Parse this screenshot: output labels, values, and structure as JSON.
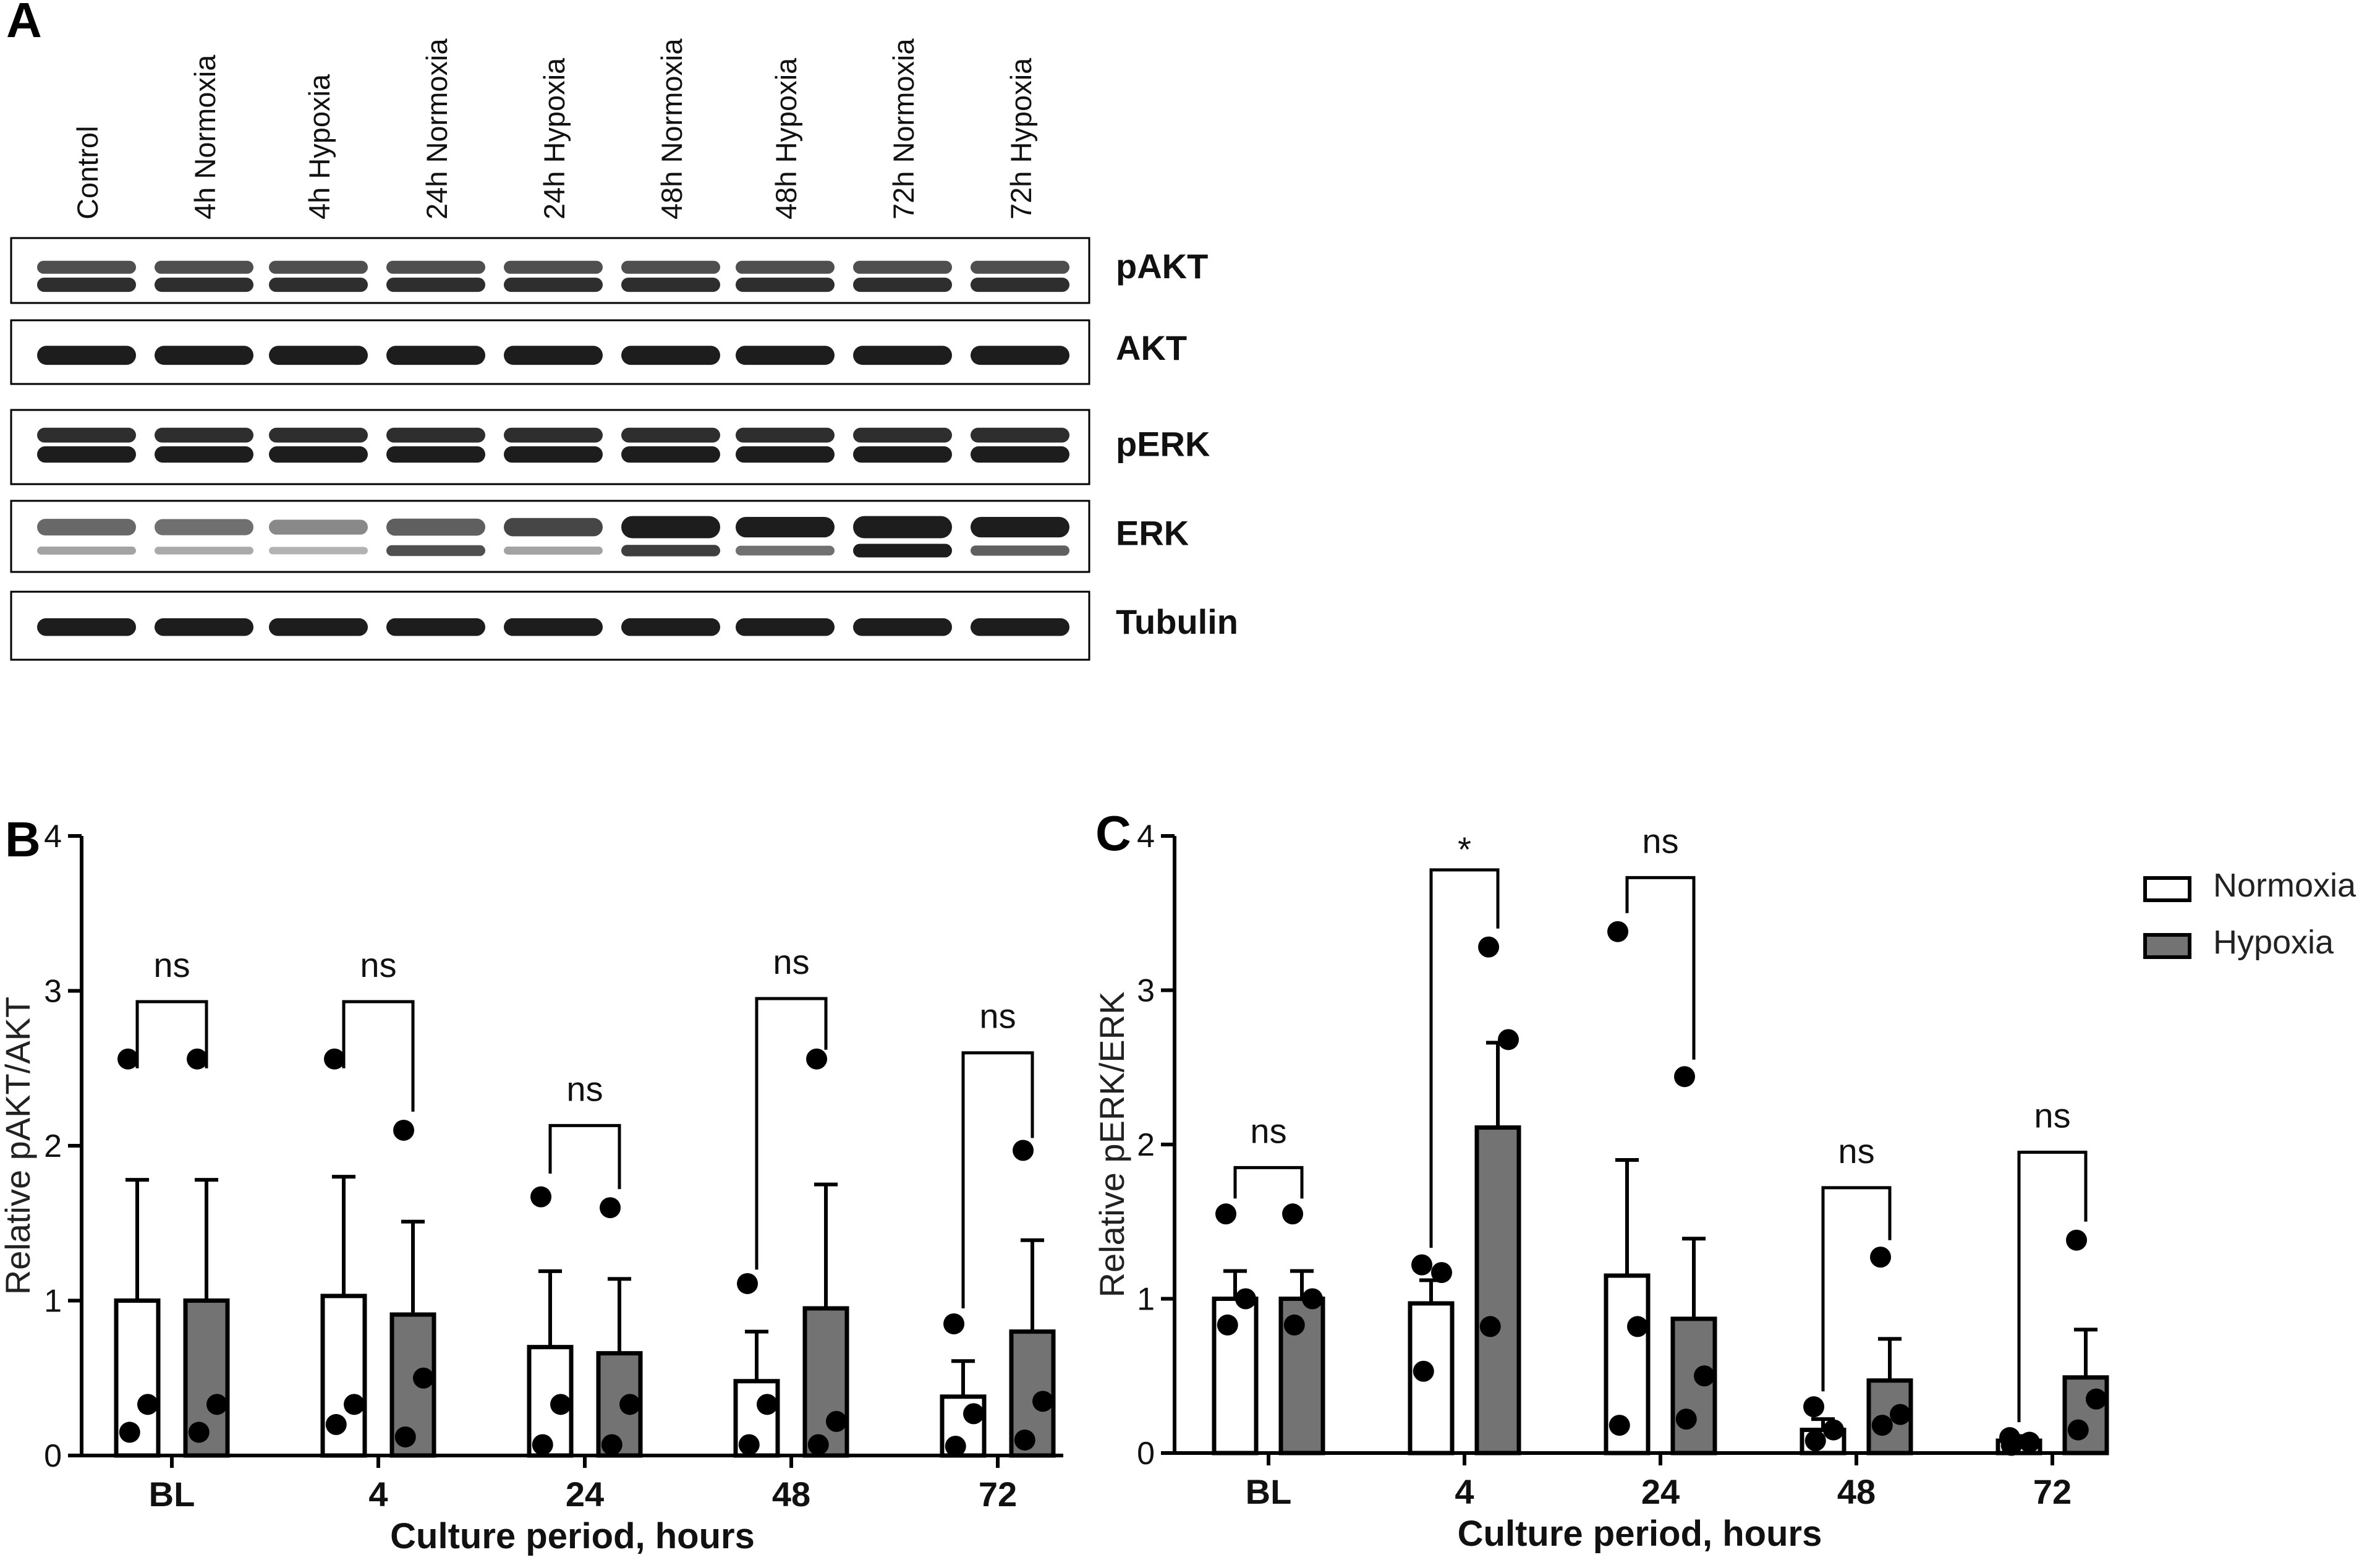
{
  "panel_labels": {
    "a": "A",
    "b": "B",
    "c": "C"
  },
  "colors": {
    "normoxia": "#ffffff",
    "hypoxia": "#737373",
    "axis": "#000000",
    "dot": "#000000"
  },
  "blot": {
    "lanes": [
      "Control",
      "4h Normoxia",
      "4h Hypoxia",
      "24h Normoxia",
      "24h Hypoxia",
      "48h Normoxia",
      "48h Hypoxia",
      "72h Normoxia",
      "72h Hypoxia"
    ],
    "proteins": [
      "pAKT",
      "AKT",
      "pERK",
      "ERK",
      "Tubulin"
    ]
  },
  "chart_data": [
    {
      "type": "bar",
      "panel": "B",
      "categories": [
        "BL",
        "4",
        "24",
        "48",
        "72"
      ],
      "xlabel": "Culture period, hours",
      "ylabel": "Relative pAKT/AKT",
      "ylim": [
        0,
        4
      ],
      "yticks": [
        0,
        1,
        2,
        3,
        4
      ],
      "series": [
        {
          "name": "Normoxia",
          "values": [
            1.0,
            1.03,
            0.7,
            0.48,
            0.38
          ],
          "sem": [
            0.78,
            0.77,
            0.49,
            0.32,
            0.23
          ],
          "points": [
            [
              2.56,
              0.33,
              0.15
            ],
            [
              2.56,
              0.33,
              0.2
            ],
            [
              1.67,
              0.33,
              0.07
            ],
            [
              1.11,
              0.33,
              0.07
            ],
            [
              0.85,
              0.27,
              0.06
            ]
          ]
        },
        {
          "name": "Hypoxia",
          "values": [
            1.0,
            0.91,
            0.66,
            0.95,
            0.8
          ],
          "sem": [
            0.78,
            0.6,
            0.48,
            0.8,
            0.59
          ],
          "points": [
            [
              2.56,
              0.33,
              0.15
            ],
            [
              2.1,
              0.5,
              0.12
            ],
            [
              1.6,
              0.33,
              0.07
            ],
            [
              2.56,
              0.22,
              0.07
            ],
            [
              1.97,
              0.35,
              0.1
            ]
          ]
        }
      ],
      "brackets": [
        {
          "label": "ns",
          "level": 2.93,
          "left_end": 2.5,
          "right_end": 2.5
        },
        {
          "label": "ns",
          "level": 2.93,
          "left_end": 2.5,
          "right_end": 2.22
        },
        {
          "label": "ns",
          "level": 2.13,
          "left_end": 1.82,
          "right_end": 1.72
        },
        {
          "label": "ns",
          "level": 2.95,
          "left_end": 1.2,
          "right_end": 2.62
        },
        {
          "label": "ns",
          "level": 2.6,
          "left_end": 0.95,
          "right_end": 2.05
        }
      ]
    },
    {
      "type": "bar",
      "panel": "C",
      "categories": [
        "BL",
        "4",
        "24",
        "48",
        "72"
      ],
      "xlabel": "Culture period, hours",
      "ylabel": "Relative pERK/ERK",
      "ylim": [
        0,
        4
      ],
      "yticks": [
        0,
        1,
        2,
        3,
        4
      ],
      "legend": {
        "position": "top-right",
        "entries": [
          "Normoxia",
          "Hypoxia"
        ]
      },
      "series": [
        {
          "name": "Normoxia",
          "values": [
            1.0,
            0.97,
            1.15,
            0.15,
            0.08
          ],
          "sem": [
            0.18,
            0.15,
            0.75,
            0.07,
            0.03
          ],
          "points": [
            [
              1.55,
              1.0,
              0.83
            ],
            [
              1.22,
              1.17,
              0.53
            ],
            [
              3.38,
              0.82,
              0.18
            ],
            [
              0.3,
              0.15,
              0.08
            ],
            [
              0.1,
              0.07,
              0.05
            ]
          ]
        },
        {
          "name": "Hypoxia",
          "values": [
            1.0,
            2.11,
            0.87,
            0.47,
            0.49
          ],
          "sem": [
            0.18,
            0.55,
            0.52,
            0.27,
            0.31
          ],
          "points": [
            [
              1.55,
              1.0,
              0.83
            ],
            [
              3.28,
              2.68,
              0.82
            ],
            [
              2.44,
              0.5,
              0.22
            ],
            [
              1.27,
              0.25,
              0.18
            ],
            [
              1.38,
              0.35,
              0.15
            ]
          ]
        }
      ],
      "brackets": [
        {
          "label": "ns",
          "level": 1.85,
          "left_end": 1.65,
          "right_end": 1.65
        },
        {
          "label": "*",
          "level": 3.78,
          "left_end": 1.33,
          "right_end": 3.4
        },
        {
          "label": "ns",
          "level": 3.73,
          "left_end": 3.5,
          "right_end": 2.55
        },
        {
          "label": "ns",
          "level": 1.72,
          "left_end": 0.4,
          "right_end": 1.38
        },
        {
          "label": "ns",
          "level": 1.95,
          "left_end": 0.2,
          "right_end": 1.5
        }
      ]
    }
  ]
}
